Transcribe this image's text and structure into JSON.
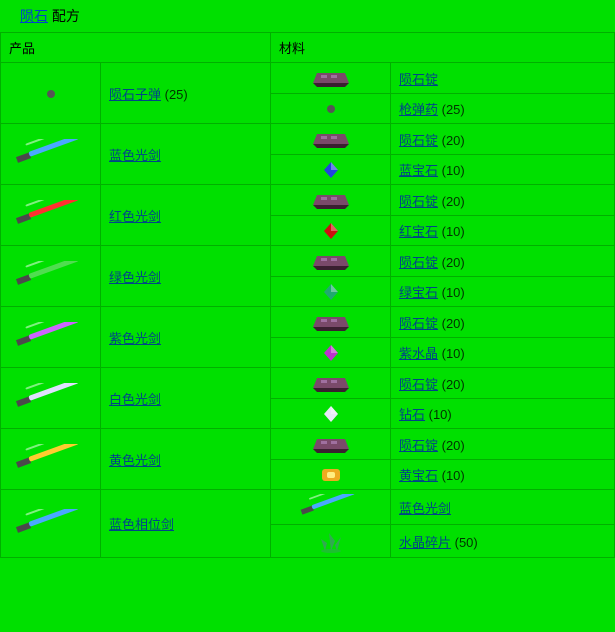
{
  "title": {
    "link": "陨石",
    "suffix": " 配方"
  },
  "columns": {
    "product": "产品",
    "material": "材料"
  },
  "items": {
    "ingot": "陨石锭",
    "ammo": "枪弹药",
    "gem_blue": "蓝宝石",
    "gem_red": "红宝石",
    "gem_green": "绿宝石",
    "gem_purple": "紫水晶",
    "gem_white": "钻石",
    "gem_yellow": "黄宝石",
    "saber_blue": "蓝色光剑",
    "crystal_shard": "水晶碎片"
  },
  "products": [
    {
      "name": "陨石子弹",
      "qty": "(25)",
      "icon": "bullet",
      "materials": [
        {
          "icon": "ingot",
          "key": "ingot",
          "qty": ""
        },
        {
          "icon": "bullet",
          "key": "ammo",
          "qty": "(25)"
        }
      ]
    },
    {
      "name": "蓝色光剑",
      "icon": "saber",
      "color": "#4aa8ff",
      "materials": [
        {
          "icon": "ingot",
          "key": "ingot",
          "qty": "(20)"
        },
        {
          "icon": "gem",
          "color": "#2244dd",
          "key": "gem_blue",
          "qty": "(10)"
        }
      ]
    },
    {
      "name": "红色光剑",
      "icon": "saber",
      "color": "#ff3030",
      "materials": [
        {
          "icon": "ingot",
          "key": "ingot",
          "qty": "(20)"
        },
        {
          "icon": "gem",
          "color": "#cc1010",
          "key": "gem_red",
          "qty": "(10)"
        }
      ]
    },
    {
      "name": "绿色光剑",
      "icon": "saber",
      "color": "#50dd50",
      "materials": [
        {
          "icon": "ingot",
          "key": "ingot",
          "qty": "(20)"
        },
        {
          "icon": "gem",
          "color": "#20aa70",
          "key": "gem_green",
          "qty": "(10)"
        }
      ]
    },
    {
      "name": "紫色光剑",
      "icon": "saber",
      "color": "#cc66ff",
      "materials": [
        {
          "icon": "ingot",
          "key": "ingot",
          "qty": "(20)"
        },
        {
          "icon": "gem",
          "color": "#bb33cc",
          "key": "gem_purple",
          "qty": "(10)"
        }
      ]
    },
    {
      "name": "白色光剑",
      "icon": "saber",
      "color": "#e0e0ff",
      "materials": [
        {
          "icon": "ingot",
          "key": "ingot",
          "qty": "(20)"
        },
        {
          "icon": "gem",
          "color": "#e8e8f8",
          "key": "gem_white",
          "qty": "(10)"
        }
      ]
    },
    {
      "name": "黄色光剑",
      "icon": "saber",
      "color": "#ffcc30",
      "materials": [
        {
          "icon": "ingot",
          "key": "ingot",
          "qty": "(20)"
        },
        {
          "icon": "gem_box",
          "color": "#eeaa20",
          "key": "gem_yellow",
          "qty": "(10)"
        }
      ]
    },
    {
      "name": "蓝色相位剑",
      "icon": "saber",
      "color": "#4aa8ff",
      "materials": [
        {
          "icon": "saber",
          "color": "#4aa8ff",
          "key": "saber_blue",
          "qty": ""
        },
        {
          "icon": "shard",
          "color": "#30aa50",
          "key": "crystal_shard",
          "qty": "(50)"
        }
      ]
    }
  ],
  "icon_colors": {
    "hilt": "#4a4a4a",
    "ingot_body": "#7a4a6a",
    "ingot_shadow": "#3a2030",
    "bullet": "#555555"
  }
}
